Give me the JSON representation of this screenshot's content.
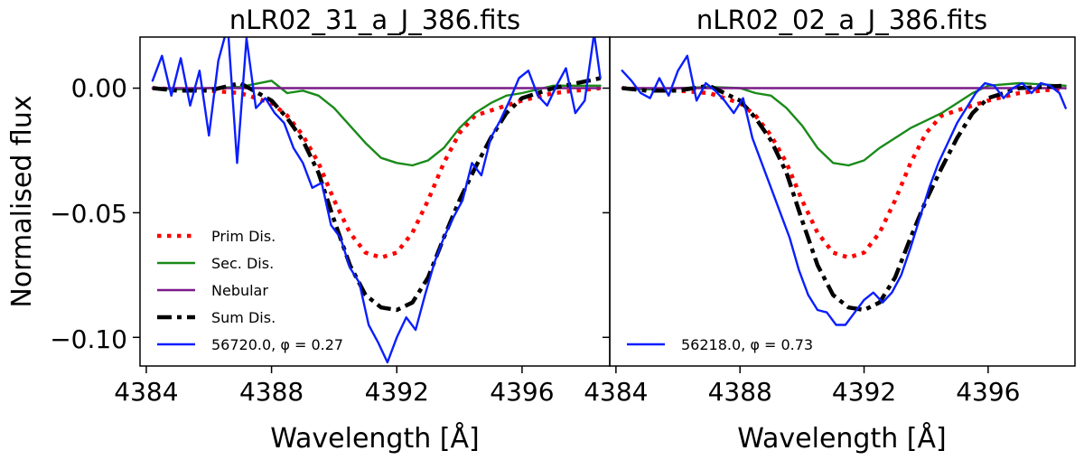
{
  "figure": {
    "ylabel": "Normalised flux",
    "yticks": [
      {
        "value": 0.0,
        "label": "0.00"
      },
      {
        "value": -0.05,
        "label": "−0.05"
      },
      {
        "value": -0.1,
        "label": "−0.10"
      }
    ]
  },
  "chart_data": [
    {
      "type": "line",
      "title": "nLR02_31_a_J_386.fits",
      "xlabel": "Wavelength [Å]",
      "ylabel": "Normalised flux",
      "xlim": [
        4383.8,
        4398.8
      ],
      "ylim": [
        -0.1115,
        0.0205
      ],
      "xticks": [
        4384,
        4388,
        4392,
        4396
      ],
      "xticklabels": [
        "4384",
        "4388",
        "4392",
        "4396"
      ],
      "legend_position": "lower-left",
      "series": [
        {
          "name": "Prim Dis.",
          "color": "#ff0000",
          "style": "dotted",
          "x": [
            4384.2,
            4385,
            4386,
            4387,
            4388,
            4388.5,
            4389,
            4389.5,
            4390,
            4390.5,
            4391,
            4391.5,
            4392,
            4392.5,
            4393,
            4393.5,
            4394,
            4394.5,
            4395,
            4396,
            4397,
            4398.5
          ],
          "y": [
            0,
            -0.0005,
            -0.001,
            -0.002,
            -0.006,
            -0.011,
            -0.019,
            -0.03,
            -0.045,
            -0.058,
            -0.066,
            -0.068,
            -0.066,
            -0.058,
            -0.045,
            -0.03,
            -0.018,
            -0.011,
            -0.009,
            -0.005,
            -0.002,
            0
          ]
        },
        {
          "name": "Sec. Dis.",
          "color": "#1a8a1a",
          "style": "solid",
          "x": [
            4384.2,
            4385,
            4386,
            4387,
            4388,
            4388.5,
            4389,
            4389.5,
            4390,
            4390.5,
            4391,
            4391.5,
            4392,
            4392.5,
            4393,
            4393.5,
            4394,
            4394.5,
            4395,
            4395.5,
            4396,
            4397,
            4398.5
          ],
          "y": [
            0,
            -0.0005,
            0,
            0.0005,
            0.003,
            -0.002,
            -0.001,
            -0.003,
            -0.008,
            -0.015,
            -0.022,
            -0.028,
            -0.03,
            -0.031,
            -0.029,
            -0.024,
            -0.016,
            -0.01,
            -0.006,
            -0.003,
            -0.002,
            0.001,
            0.001
          ]
        },
        {
          "name": "Nebular",
          "color": "#7a1a8a",
          "style": "solid",
          "x": [
            4384.2,
            4398.5
          ],
          "y": [
            0,
            0
          ]
        },
        {
          "name": "Sum Dis.",
          "color": "#000000",
          "style": "dashdot",
          "x": [
            4384.2,
            4385,
            4386,
            4387,
            4388,
            4388.5,
            4389,
            4389.5,
            4390,
            4390.5,
            4391,
            4391.5,
            4392,
            4392.5,
            4393,
            4393.5,
            4394,
            4394.5,
            4395,
            4395.5,
            4396,
            4397,
            4398.5
          ],
          "y": [
            0,
            -0.001,
            -0.001,
            0.002,
            -0.005,
            -0.012,
            -0.021,
            -0.034,
            -0.053,
            -0.071,
            -0.083,
            -0.088,
            -0.089,
            -0.086,
            -0.076,
            -0.06,
            -0.045,
            -0.032,
            -0.02,
            -0.01,
            -0.004,
            0,
            0.004
          ]
        },
        {
          "name": "56720.0, φ = 0.27",
          "color": "#0a1eff",
          "style": "solid",
          "x": [
            4384.2,
            4384.5,
            4384.8,
            4385.1,
            4385.4,
            4385.7,
            4386,
            4386.3,
            4386.6,
            4386.9,
            4387.2,
            4387.5,
            4387.8,
            4388.1,
            4388.4,
            4388.7,
            4389,
            4389.3,
            4389.6,
            4389.9,
            4390.2,
            4390.5,
            4390.8,
            4391.1,
            4391.4,
            4391.7,
            4392,
            4392.3,
            4392.6,
            4392.9,
            4393.2,
            4393.5,
            4393.8,
            4394.1,
            4394.4,
            4394.7,
            4395,
            4395.3,
            4395.6,
            4395.9,
            4396.2,
            4396.5,
            4396.8,
            4397.1,
            4397.4,
            4397.7,
            4398,
            4398.3,
            4398.5
          ],
          "y": [
            0.003,
            0.013,
            -0.003,
            0.012,
            -0.007,
            0.007,
            -0.019,
            0.011,
            0.025,
            -0.03,
            0.02,
            -0.008,
            -0.004,
            -0.01,
            -0.014,
            -0.024,
            -0.03,
            -0.04,
            -0.038,
            -0.055,
            -0.06,
            -0.072,
            -0.078,
            -0.095,
            -0.102,
            -0.11,
            -0.1,
            -0.092,
            -0.097,
            -0.083,
            -0.07,
            -0.06,
            -0.052,
            -0.045,
            -0.03,
            -0.035,
            -0.02,
            -0.013,
            -0.005,
            0.004,
            0.007,
            -0.003,
            -0.007,
            0.001,
            0.008,
            -0.01,
            -0.005,
            0.022,
            0.004
          ]
        }
      ],
      "legend_entries": [
        "Prim Dis.",
        "Sec. Dis.",
        "Nebular",
        "Sum Dis.",
        "56720.0, φ = 0.27"
      ]
    },
    {
      "type": "line",
      "title": "nLR02_02_a_J_386.fits",
      "xlabel": "Wavelength [Å]",
      "xlim": [
        4383.8,
        4398.8
      ],
      "ylim": [
        -0.1115,
        0.0205
      ],
      "xticks": [
        4384,
        4388,
        4392,
        4396
      ],
      "xticklabels": [
        "4384",
        "4388",
        "4392",
        "4396"
      ],
      "legend_position": "lower-left",
      "series": [
        {
          "name": "Prim Dis.",
          "color": "#ff0000",
          "style": "dotted",
          "x": [
            4384.2,
            4385,
            4386,
            4387,
            4388,
            4388.5,
            4389,
            4389.5,
            4390,
            4390.5,
            4391,
            4391.5,
            4392,
            4392.5,
            4393,
            4393.5,
            4394,
            4394.5,
            4395,
            4396,
            4397,
            4398.5
          ],
          "y": [
            0,
            -0.0005,
            -0.001,
            -0.002,
            -0.006,
            -0.011,
            -0.019,
            -0.03,
            -0.045,
            -0.058,
            -0.066,
            -0.068,
            -0.066,
            -0.058,
            -0.045,
            -0.03,
            -0.018,
            -0.011,
            -0.009,
            -0.005,
            -0.002,
            0
          ]
        },
        {
          "name": "Sec. Dis.",
          "color": "#1a8a1a",
          "style": "solid",
          "x": [
            4384.2,
            4385,
            4386,
            4387,
            4388,
            4388.5,
            4389,
            4389.5,
            4390,
            4390.5,
            4391,
            4391.5,
            4392,
            4392.5,
            4393,
            4393.5,
            4394,
            4394.5,
            4395,
            4395.5,
            4396,
            4397,
            4398.5
          ],
          "y": [
            0,
            -0.0005,
            0,
            0.0005,
            0,
            -0.002,
            -0.003,
            -0.008,
            -0.015,
            -0.024,
            -0.03,
            -0.031,
            -0.029,
            -0.024,
            -0.02,
            -0.016,
            -0.013,
            -0.01,
            -0.006,
            -0.002,
            0.001,
            0.002,
            0.001
          ]
        },
        {
          "name": "Nebular",
          "color": "#7a1a8a",
          "style": "solid",
          "x": [
            4384.2,
            4398.5
          ],
          "y": [
            0,
            0
          ]
        },
        {
          "name": "Sum Dis.",
          "color": "#000000",
          "style": "dashdot",
          "x": [
            4384.2,
            4385,
            4386,
            4387,
            4388,
            4388.5,
            4389,
            4389.5,
            4390,
            4390.5,
            4391,
            4391.5,
            4392,
            4392.5,
            4393,
            4393.5,
            4394,
            4394.5,
            4395,
            4395.5,
            4396,
            4397,
            4398.5
          ],
          "y": [
            0,
            -0.001,
            -0.001,
            0.001,
            -0.005,
            -0.012,
            -0.021,
            -0.034,
            -0.053,
            -0.071,
            -0.083,
            -0.088,
            -0.089,
            -0.086,
            -0.076,
            -0.06,
            -0.045,
            -0.032,
            -0.02,
            -0.01,
            -0.004,
            0,
            0.001
          ]
        },
        {
          "name": "56218.0, φ = 0.73",
          "color": "#0a1eff",
          "style": "solid",
          "x": [
            4384.2,
            4384.5,
            4384.8,
            4385.1,
            4385.4,
            4385.7,
            4386,
            4386.3,
            4386.6,
            4386.9,
            4387.2,
            4387.5,
            4387.8,
            4388.1,
            4388.4,
            4388.7,
            4389,
            4389.3,
            4389.6,
            4389.9,
            4390.2,
            4390.5,
            4390.8,
            4391.1,
            4391.4,
            4391.7,
            4392,
            4392.3,
            4392.6,
            4392.9,
            4393.2,
            4393.5,
            4393.8,
            4394.1,
            4394.4,
            4394.7,
            4395,
            4395.3,
            4395.6,
            4395.9,
            4396.2,
            4396.5,
            4396.8,
            4397.1,
            4397.4,
            4397.7,
            4398,
            4398.3,
            4398.5
          ],
          "y": [
            0.007,
            0.003,
            -0.002,
            -0.004,
            0.004,
            -0.003,
            0.007,
            0.013,
            -0.005,
            0.002,
            -0.001,
            -0.005,
            -0.01,
            -0.004,
            -0.02,
            -0.03,
            -0.04,
            -0.05,
            -0.06,
            -0.073,
            -0.083,
            -0.089,
            -0.09,
            -0.095,
            -0.095,
            -0.09,
            -0.085,
            -0.082,
            -0.086,
            -0.082,
            -0.075,
            -0.064,
            -0.052,
            -0.04,
            -0.03,
            -0.022,
            -0.014,
            -0.008,
            -0.002,
            0.002,
            0.001,
            -0.004,
            0,
            0.002,
            -0.002,
            0.002,
            0.001,
            -0.002,
            -0.008
          ]
        }
      ],
      "legend_entries": [
        "56218.0, φ = 0.73"
      ]
    }
  ]
}
